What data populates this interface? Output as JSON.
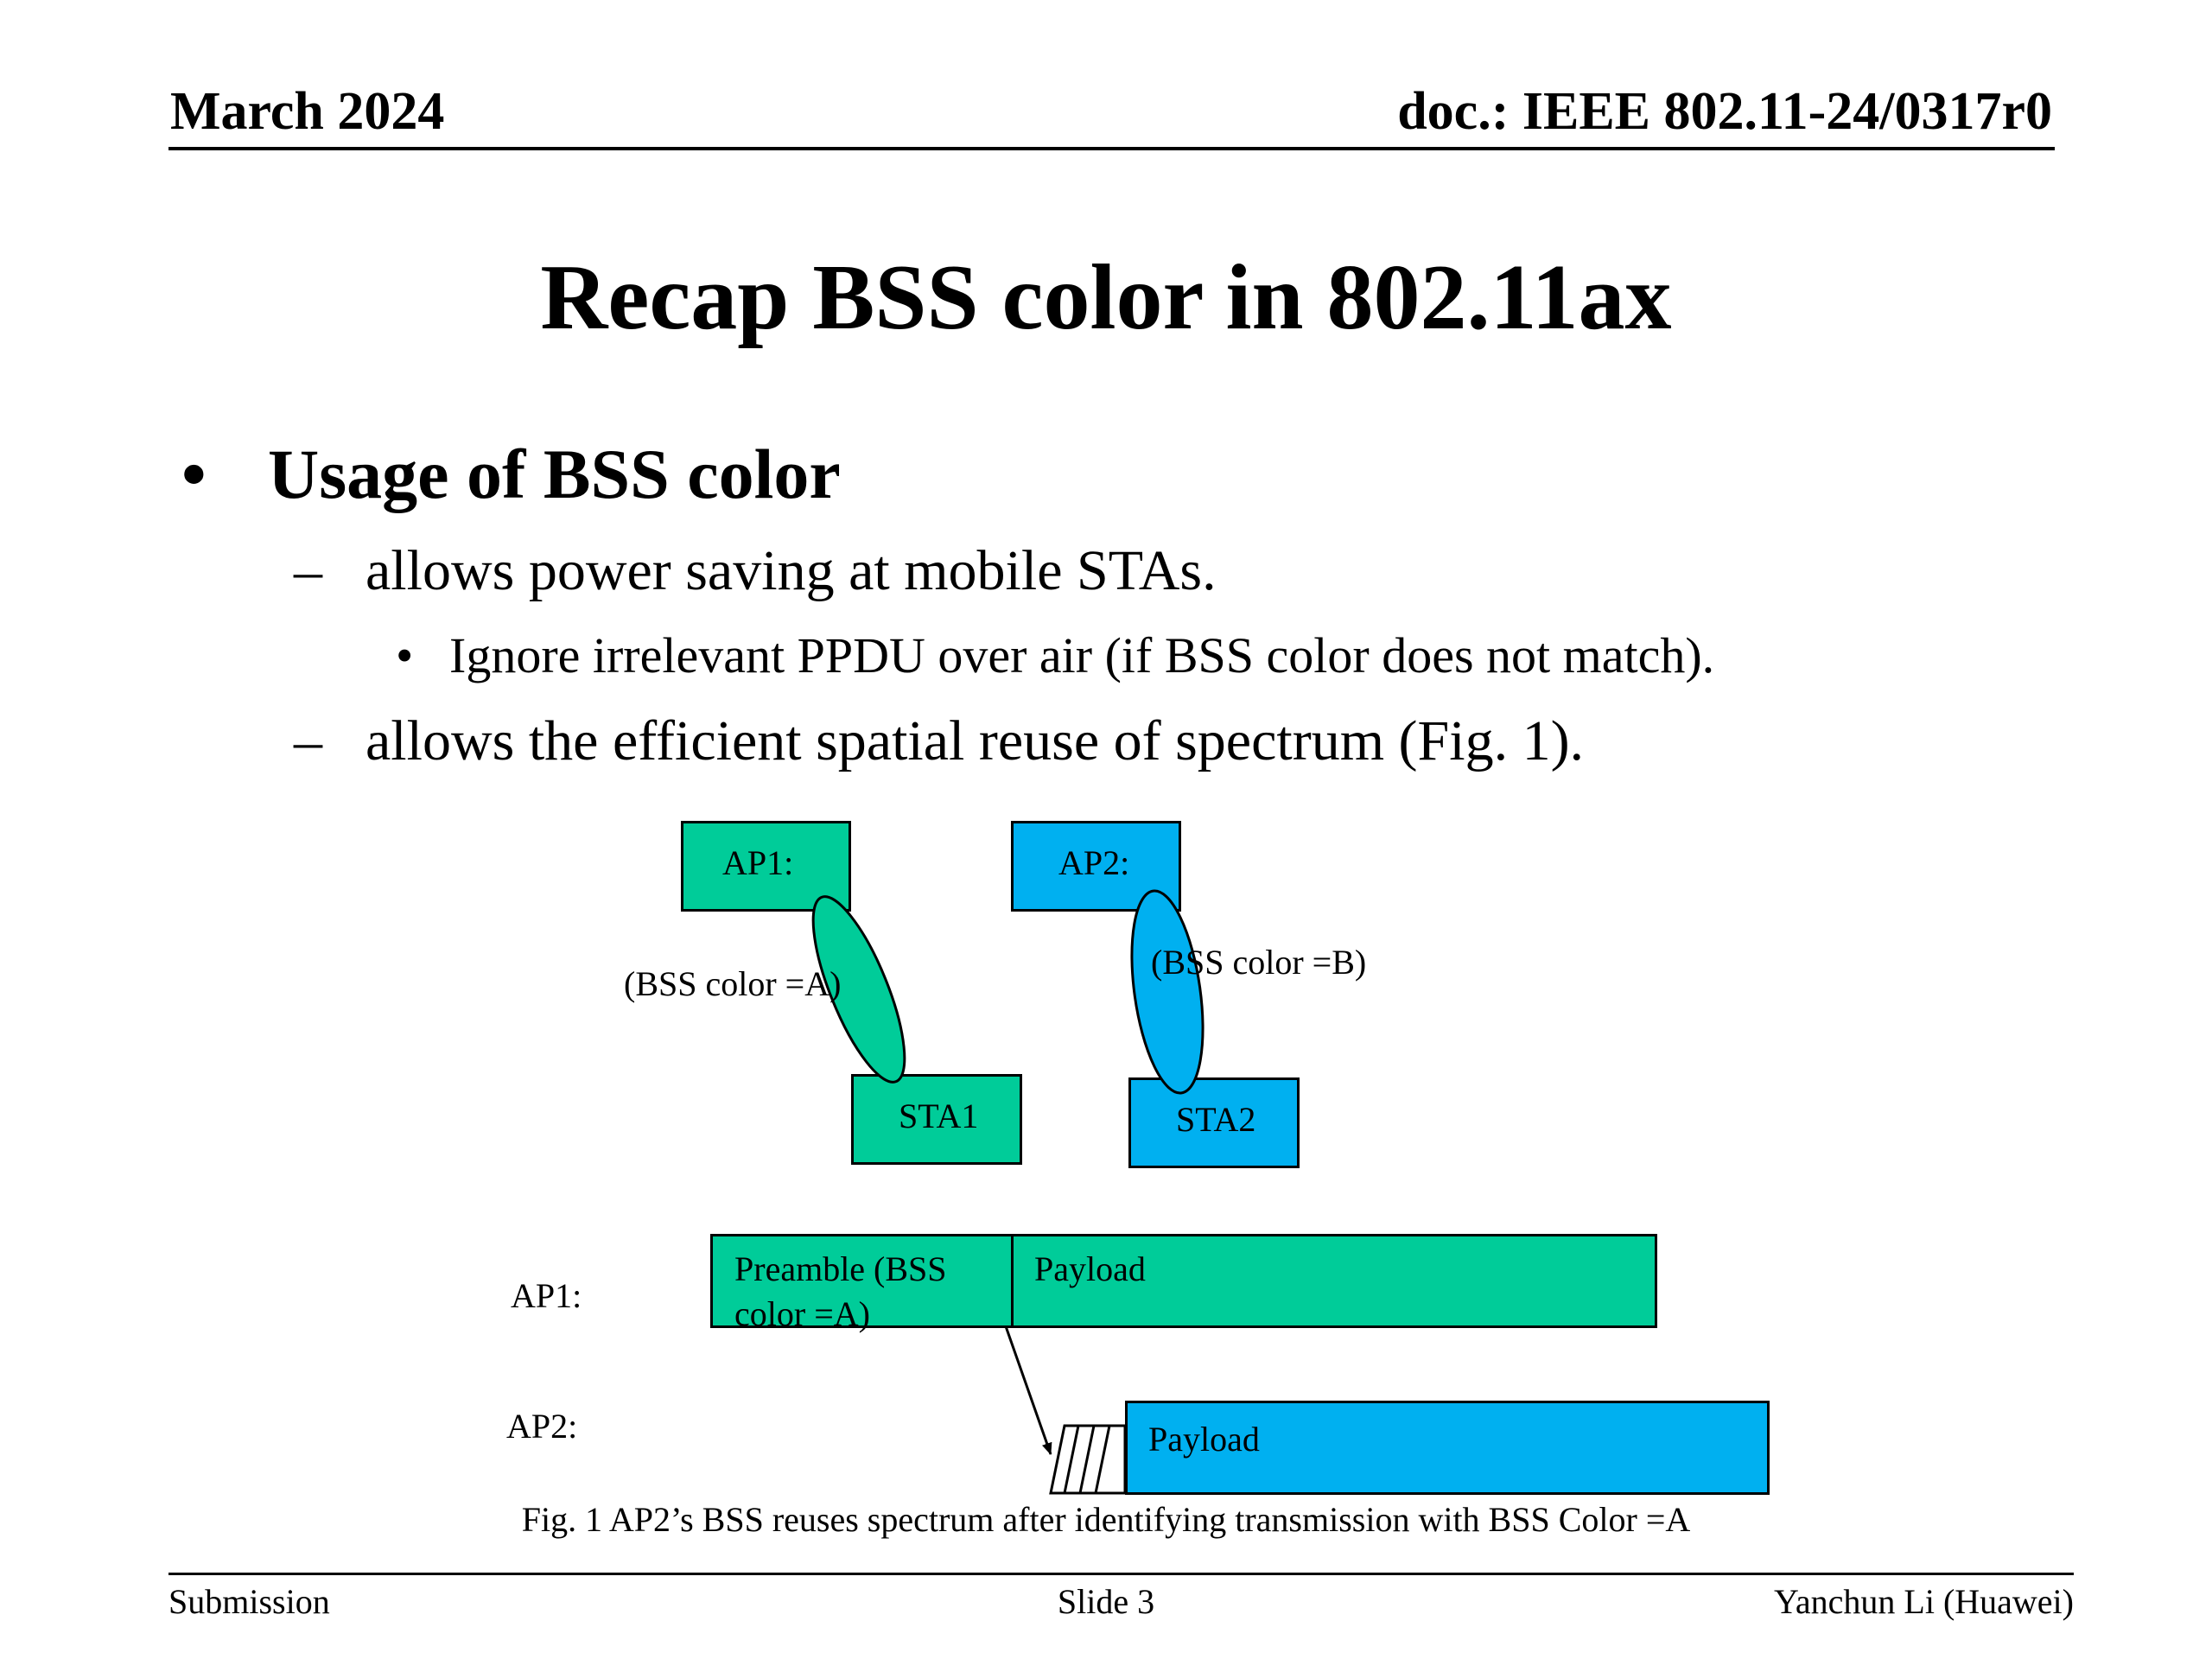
{
  "header": {
    "date": "March 2024",
    "doc_id": "doc.: IEEE 802.11-24/0317r0"
  },
  "slide": {
    "title": "Recap BSS color in 802.11ax",
    "bullet_symbol": "•",
    "dash_symbol": "–",
    "bullet": "Usage of BSS color",
    "sub_item_1": "allows power saving at mobile STAs.",
    "sub_sub_item": "Ignore irrelevant PPDU over air (if BSS color does not match).",
    "sub_item_2": "allows the efficient spatial reuse of spectrum (Fig. 1)."
  },
  "figure": {
    "ap1_box": "AP1:",
    "ap2_box": "AP2:",
    "sta1_box": "STA1",
    "sta2_box": "STA2",
    "color_a": "(BSS color =A)",
    "color_b": "(BSS color =B)",
    "timeline_ap1_label": "AP1:",
    "timeline_ap2_label": "AP2:",
    "preamble_line1": "Preamble (BSS",
    "preamble_line2": "color =A)",
    "payload_ap1": "Payload",
    "payload_ap2": "Payload",
    "caption": "Fig. 1 AP2’s BSS reuses spectrum after identifying transmission with BSS Color =A",
    "colors": {
      "bss_a": "#00cc99",
      "bss_b": "#00b0f0"
    }
  },
  "footer": {
    "left": "Submission",
    "center": "Slide 3",
    "right": "Yanchun Li (Huawei)"
  }
}
